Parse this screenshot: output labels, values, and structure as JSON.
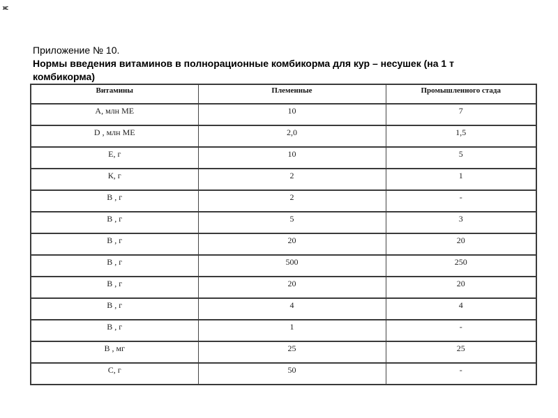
{
  "page": {
    "corner_mark": "ж:",
    "background_color": "#ffffff",
    "table_border_color": "#3a3a3a",
    "text_color": "#1f1f1f"
  },
  "document": {
    "appendix_label": "Приложение № 10.",
    "title_line1": "Нормы введения витаминов в полнорационные комбикорма для кур – несушек (на 1 т",
    "title_line2": "комбикорма)"
  },
  "table": {
    "columns": [
      "Витамины",
      "Племенные",
      "Промышленного стада"
    ],
    "rows": [
      {
        "vitamin": "А, млн МЕ",
        "breeding": "10",
        "industrial": "7"
      },
      {
        "vitamin": "D , млн МЕ",
        "breeding": "2,0",
        "industrial": "1,5"
      },
      {
        "vitamin": "Е, г",
        "breeding": "10",
        "industrial": "5"
      },
      {
        "vitamin": "К, г",
        "breeding": "2",
        "industrial": "1"
      },
      {
        "vitamin": "В , г",
        "breeding": "2",
        "industrial": "-"
      },
      {
        "vitamin": "В , г",
        "breeding": "5",
        "industrial": "3"
      },
      {
        "vitamin": "В , г",
        "breeding": "20",
        "industrial": "20"
      },
      {
        "vitamin": "В , г",
        "breeding": "500",
        "industrial": "250"
      },
      {
        "vitamin": "В , г",
        "breeding": "20",
        "industrial": "20"
      },
      {
        "vitamin": "В , г",
        "breeding": "4",
        "industrial": "4"
      },
      {
        "vitamin": "В , г",
        "breeding": "1",
        "industrial": "-"
      },
      {
        "vitamin": "В , мг",
        "breeding": "25",
        "industrial": "25"
      },
      {
        "vitamin": "С, г",
        "breeding": "50",
        "industrial": "-"
      }
    ]
  }
}
